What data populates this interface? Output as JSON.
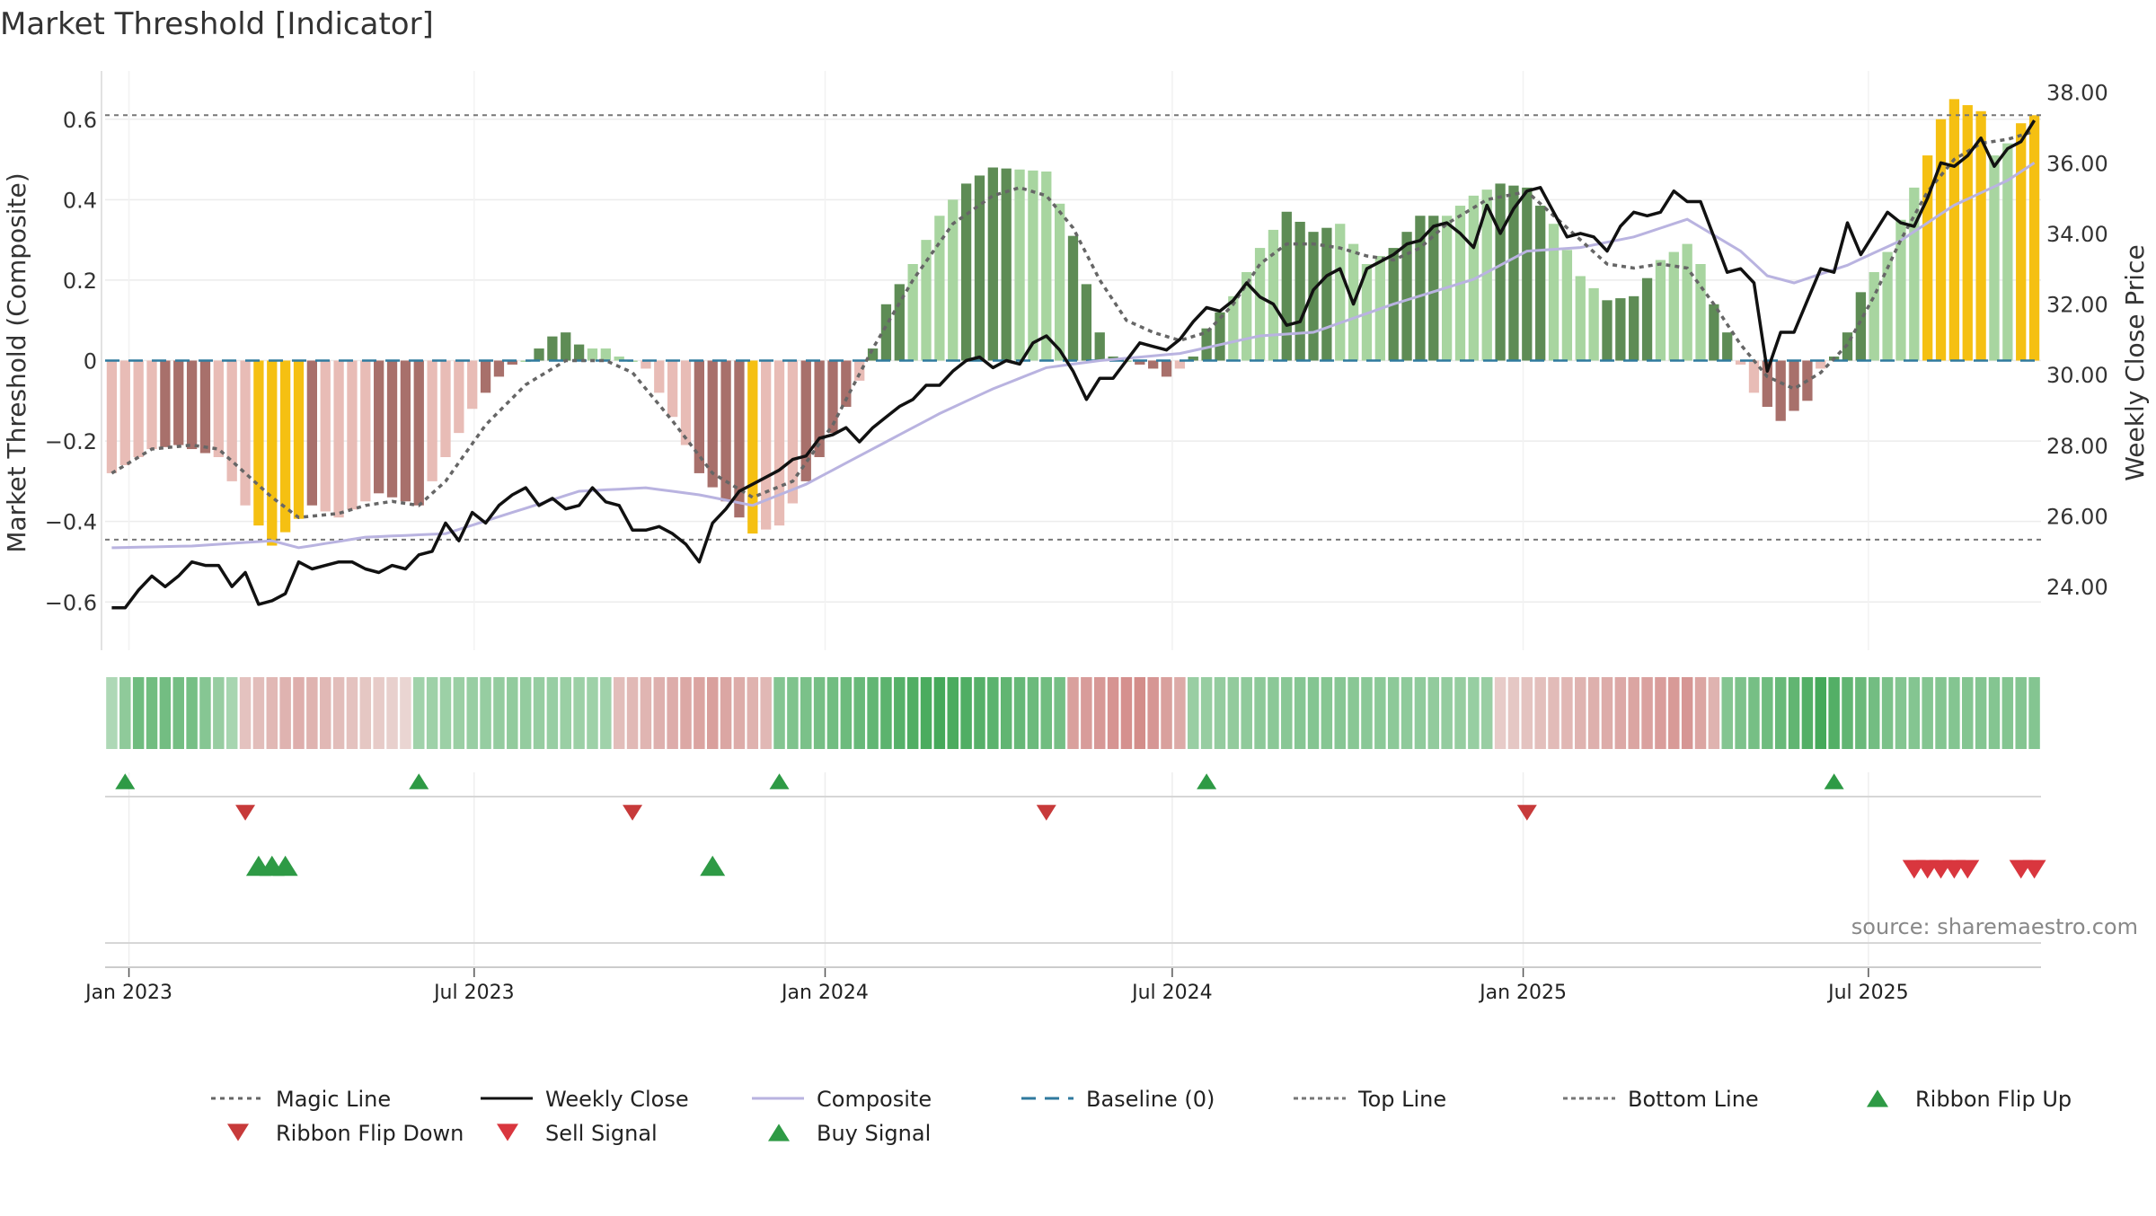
{
  "title": "Market Threshold [Indicator]",
  "source_text": "source: sharemaestro.com",
  "colors": {
    "bar_dark_green": "#5e8c55",
    "bar_light_green": "#a8d5a0",
    "bar_dark_red": "#a8706b",
    "bar_light_red": "#e8bcb6",
    "bar_gold": "#f5c012",
    "weekly_close": "#111111",
    "composite": "#b9b3e0",
    "magic_line": "#666666",
    "baseline": "#2f7a9e",
    "ref_lines": "#777777",
    "buy_green": "#2e9a45",
    "sell_red": "#d9363e",
    "flip_down_red": "#c73a3a"
  },
  "chart_data": {
    "type": "bar",
    "start_date": "2022-12-23",
    "week_count": 145,
    "left_axis": {
      "label": "Market Threshold (Composite)",
      "range": [
        -0.72,
        0.72
      ],
      "ticks": [
        -0.6,
        -0.4,
        -0.2,
        0,
        0.2,
        0.4,
        0.6
      ],
      "tick_labels": [
        "−0.6",
        "−0.4",
        "−0.2",
        "0",
        "0.2",
        "0.4",
        "0.6"
      ]
    },
    "right_axis": {
      "label": "Weekly Close Price",
      "range": [
        22.2,
        38.6
      ],
      "ticks": [
        24,
        26,
        28,
        30,
        32,
        34,
        36,
        38
      ],
      "tick_labels": [
        "24.00",
        "26.00",
        "28.00",
        "30.00",
        "32.00",
        "34.00",
        "36.00",
        "38.00"
      ]
    },
    "x_ticks": [
      {
        "date": "2023-01-01",
        "label": "Jan 2023"
      },
      {
        "date": "2023-07-01",
        "label": "Jul 2023"
      },
      {
        "date": "2024-01-01",
        "label": "Jan 2024"
      },
      {
        "date": "2024-07-01",
        "label": "Jul 2024"
      },
      {
        "date": "2025-01-01",
        "label": "Jan 2025"
      },
      {
        "date": "2025-07-01",
        "label": "Jul 2025"
      }
    ],
    "reference_lines": {
      "top": 0.61,
      "bottom": -0.445,
      "baseline": 0
    },
    "grid": true,
    "composite_bar_anchors": [
      [
        0,
        -0.28
      ],
      [
        3,
        -0.22
      ],
      [
        5,
        -0.21
      ],
      [
        8,
        -0.24
      ],
      [
        10,
        -0.36
      ],
      [
        12,
        -0.46
      ],
      [
        15,
        -0.36
      ],
      [
        17,
        -0.39
      ],
      [
        20,
        -0.33
      ],
      [
        23,
        -0.36
      ],
      [
        25,
        -0.24
      ],
      [
        27,
        -0.12
      ],
      [
        29,
        -0.04
      ],
      [
        30,
        -0.01
      ],
      [
        31,
        0
      ],
      [
        32,
        0.03
      ],
      [
        33,
        0.06
      ],
      [
        34,
        0.07
      ],
      [
        35,
        0.04
      ],
      [
        36,
        0.03
      ],
      [
        37,
        0.03
      ],
      [
        38,
        0.01
      ],
      [
        39,
        0
      ],
      [
        40,
        -0.02
      ],
      [
        42,
        -0.14
      ],
      [
        44,
        -0.28
      ],
      [
        46,
        -0.35
      ],
      [
        48,
        -0.43
      ],
      [
        50,
        -0.41
      ],
      [
        52,
        -0.3
      ],
      [
        54,
        -0.18
      ],
      [
        56,
        -0.05
      ],
      [
        57,
        0.03
      ],
      [
        58,
        0.14
      ],
      [
        60,
        0.24
      ],
      [
        62,
        0.36
      ],
      [
        64,
        0.44
      ],
      [
        66,
        0.48
      ],
      [
        70,
        0.47
      ],
      [
        72,
        0.31
      ],
      [
        74,
        0.07
      ],
      [
        75,
        0.01
      ],
      [
        76,
        0
      ],
      [
        77,
        -0.01
      ],
      [
        78,
        -0.02
      ],
      [
        79,
        -0.04
      ],
      [
        80,
        -0.02
      ],
      [
        81,
        0.01
      ],
      [
        82,
        0.08
      ],
      [
        84,
        0.16
      ],
      [
        86,
        0.28
      ],
      [
        88,
        0.37
      ],
      [
        90,
        0.32
      ],
      [
        92,
        0.34
      ],
      [
        94,
        0.24
      ],
      [
        96,
        0.28
      ],
      [
        98,
        0.36
      ],
      [
        100,
        0.36
      ],
      [
        102,
        0.41
      ],
      [
        104,
        0.44
      ],
      [
        106,
        0.43
      ],
      [
        108,
        0.34
      ],
      [
        110,
        0.21
      ],
      [
        112,
        0.15
      ],
      [
        114,
        0.16
      ],
      [
        116,
        0.25
      ],
      [
        118,
        0.29
      ],
      [
        119,
        0.24
      ],
      [
        120,
        0.14
      ],
      [
        121,
        0.07
      ],
      [
        122,
        -0.01
      ],
      [
        123,
        -0.08
      ],
      [
        125,
        -0.15
      ],
      [
        127,
        -0.1
      ],
      [
        128,
        -0.02
      ],
      [
        129,
        0.01
      ],
      [
        130,
        0.07
      ],
      [
        131,
        0.17
      ],
      [
        133,
        0.27
      ],
      [
        135,
        0.43
      ],
      [
        136,
        0.51
      ],
      [
        137,
        0.6
      ],
      [
        138,
        0.65
      ],
      [
        140,
        0.62
      ],
      [
        141,
        0.51
      ],
      [
        142,
        0.54
      ],
      [
        143,
        0.59
      ],
      [
        144,
        0.61
      ]
    ],
    "bar_color_rule": "gold when |value| >= 0.43 near peaks (weeks 12-14, 48, 136-140, 143-144); otherwise dark/light alternating bands of green (positive) or red (negative)",
    "weekly_close_anchors": [
      [
        0,
        23.4
      ],
      [
        1,
        23.4
      ],
      [
        2,
        23.9
      ],
      [
        3,
        24.3
      ],
      [
        4,
        24.0
      ],
      [
        5,
        24.3
      ],
      [
        6,
        24.7
      ],
      [
        7,
        24.6
      ],
      [
        8,
        24.6
      ],
      [
        9,
        24.0
      ],
      [
        10,
        24.4
      ],
      [
        11,
        23.5
      ],
      [
        12,
        23.6
      ],
      [
        13,
        23.8
      ],
      [
        14,
        24.7
      ],
      [
        15,
        24.5
      ],
      [
        16,
        24.6
      ],
      [
        17,
        24.7
      ],
      [
        18,
        24.7
      ],
      [
        19,
        24.5
      ],
      [
        20,
        24.4
      ],
      [
        21,
        24.6
      ],
      [
        22,
        24.5
      ],
      [
        23,
        24.9
      ],
      [
        24,
        25.0
      ],
      [
        25,
        25.8
      ],
      [
        26,
        25.3
      ],
      [
        27,
        26.1
      ],
      [
        28,
        25.8
      ],
      [
        29,
        26.3
      ],
      [
        30,
        26.6
      ],
      [
        31,
        26.8
      ],
      [
        32,
        26.3
      ],
      [
        33,
        26.5
      ],
      [
        34,
        26.2
      ],
      [
        35,
        26.3
      ],
      [
        36,
        26.8
      ],
      [
        37,
        26.4
      ],
      [
        38,
        26.3
      ],
      [
        39,
        25.6
      ],
      [
        40,
        25.6
      ],
      [
        41,
        25.7
      ],
      [
        42,
        25.5
      ],
      [
        43,
        25.2
      ],
      [
        44,
        24.7
      ],
      [
        45,
        25.8
      ],
      [
        46,
        26.2
      ],
      [
        47,
        26.7
      ],
      [
        48,
        26.9
      ],
      [
        49,
        27.1
      ],
      [
        50,
        27.3
      ],
      [
        51,
        27.6
      ],
      [
        52,
        27.7
      ],
      [
        53,
        28.2
      ],
      [
        54,
        28.3
      ],
      [
        55,
        28.5
      ],
      [
        56,
        28.1
      ],
      [
        57,
        28.5
      ],
      [
        58,
        28.8
      ],
      [
        59,
        29.1
      ],
      [
        60,
        29.3
      ],
      [
        61,
        29.7
      ],
      [
        62,
        29.7
      ],
      [
        63,
        30.1
      ],
      [
        64,
        30.4
      ],
      [
        65,
        30.5
      ],
      [
        66,
        30.2
      ],
      [
        67,
        30.4
      ],
      [
        68,
        30.3
      ],
      [
        69,
        30.9
      ],
      [
        70,
        31.1
      ],
      [
        71,
        30.7
      ],
      [
        72,
        30.1
      ],
      [
        73,
        29.3
      ],
      [
        74,
        29.9
      ],
      [
        75,
        29.9
      ],
      [
        76,
        30.4
      ],
      [
        77,
        30.9
      ],
      [
        78,
        30.8
      ],
      [
        79,
        30.7
      ],
      [
        80,
        31.0
      ],
      [
        81,
        31.5
      ],
      [
        82,
        31.9
      ],
      [
        83,
        31.8
      ],
      [
        84,
        32.1
      ],
      [
        85,
        32.6
      ],
      [
        86,
        32.2
      ],
      [
        87,
        32.0
      ],
      [
        88,
        31.4
      ],
      [
        89,
        31.5
      ],
      [
        90,
        32.4
      ],
      [
        91,
        32.8
      ],
      [
        92,
        33.0
      ],
      [
        93,
        32.0
      ],
      [
        94,
        33.0
      ],
      [
        95,
        33.2
      ],
      [
        96,
        33.4
      ],
      [
        97,
        33.7
      ],
      [
        98,
        33.8
      ],
      [
        99,
        34.2
      ],
      [
        100,
        34.3
      ],
      [
        101,
        34.0
      ],
      [
        102,
        33.6
      ],
      [
        103,
        34.8
      ],
      [
        104,
        34.0
      ],
      [
        105,
        34.7
      ],
      [
        106,
        35.2
      ],
      [
        107,
        35.3
      ],
      [
        108,
        34.6
      ],
      [
        109,
        33.9
      ],
      [
        110,
        34.0
      ],
      [
        111,
        33.9
      ],
      [
        112,
        33.5
      ],
      [
        113,
        34.2
      ],
      [
        114,
        34.6
      ],
      [
        115,
        34.5
      ],
      [
        116,
        34.6
      ],
      [
        117,
        35.2
      ],
      [
        118,
        34.9
      ],
      [
        119,
        34.9
      ],
      [
        120,
        33.9
      ],
      [
        121,
        32.9
      ],
      [
        122,
        33.0
      ],
      [
        123,
        32.6
      ],
      [
        124,
        30.1
      ],
      [
        125,
        31.2
      ],
      [
        126,
        31.2
      ],
      [
        127,
        32.1
      ],
      [
        128,
        33.0
      ],
      [
        129,
        32.9
      ],
      [
        130,
        34.3
      ],
      [
        131,
        33.4
      ],
      [
        132,
        34.0
      ],
      [
        133,
        34.6
      ],
      [
        134,
        34.3
      ],
      [
        135,
        34.2
      ],
      [
        136,
        35.0
      ],
      [
        137,
        36.0
      ],
      [
        138,
        35.9
      ],
      [
        139,
        36.2
      ],
      [
        140,
        36.7
      ],
      [
        141,
        35.9
      ],
      [
        142,
        36.4
      ],
      [
        143,
        36.6
      ],
      [
        144,
        37.2
      ]
    ],
    "composite_anchors": [
      [
        0,
        25.1
      ],
      [
        6,
        25.15
      ],
      [
        12,
        25.3
      ],
      [
        14,
        25.1
      ],
      [
        19,
        25.4
      ],
      [
        25,
        25.5
      ],
      [
        30,
        26.1
      ],
      [
        35,
        26.7
      ],
      [
        40,
        26.8
      ],
      [
        44,
        26.6
      ],
      [
        48,
        26.3
      ],
      [
        52,
        26.9
      ],
      [
        56,
        27.7
      ],
      [
        62,
        28.9
      ],
      [
        66,
        29.6
      ],
      [
        70,
        30.2
      ],
      [
        74,
        30.4
      ],
      [
        80,
        30.6
      ],
      [
        86,
        31.1
      ],
      [
        90,
        31.2
      ],
      [
        96,
        32.0
      ],
      [
        102,
        32.7
      ],
      [
        106,
        33.5
      ],
      [
        110,
        33.6
      ],
      [
        114,
        33.9
      ],
      [
        118,
        34.4
      ],
      [
        122,
        33.5
      ],
      [
        124,
        32.8
      ],
      [
        126,
        32.6
      ],
      [
        130,
        33.1
      ],
      [
        134,
        33.8
      ],
      [
        138,
        34.8
      ],
      [
        142,
        35.5
      ],
      [
        144,
        36.0
      ]
    ],
    "magic_line_anchors": [
      [
        0,
        -0.28
      ],
      [
        3,
        -0.22
      ],
      [
        6,
        -0.21
      ],
      [
        8,
        -0.22
      ],
      [
        10,
        -0.28
      ],
      [
        12,
        -0.34
      ],
      [
        14,
        -0.39
      ],
      [
        17,
        -0.38
      ],
      [
        19,
        -0.36
      ],
      [
        21,
        -0.35
      ],
      [
        23,
        -0.36
      ],
      [
        25,
        -0.3
      ],
      [
        28,
        -0.16
      ],
      [
        31,
        -0.06
      ],
      [
        34,
        0
      ],
      [
        37,
        0
      ],
      [
        39,
        -0.03
      ],
      [
        42,
        -0.15
      ],
      [
        45,
        -0.28
      ],
      [
        48,
        -0.34
      ],
      [
        51,
        -0.3
      ],
      [
        54,
        -0.16
      ],
      [
        57,
        0.03
      ],
      [
        60,
        0.2
      ],
      [
        63,
        0.34
      ],
      [
        66,
        0.41
      ],
      [
        68,
        0.43
      ],
      [
        70,
        0.41
      ],
      [
        72,
        0.33
      ],
      [
        74,
        0.2
      ],
      [
        76,
        0.1
      ],
      [
        78,
        0.07
      ],
      [
        80,
        0.05
      ],
      [
        82,
        0.07
      ],
      [
        84,
        0.14
      ],
      [
        86,
        0.24
      ],
      [
        88,
        0.29
      ],
      [
        90,
        0.29
      ],
      [
        92,
        0.28
      ],
      [
        94,
        0.26
      ],
      [
        96,
        0.25
      ],
      [
        98,
        0.28
      ],
      [
        100,
        0.34
      ],
      [
        103,
        0.4
      ],
      [
        106,
        0.42
      ],
      [
        108,
        0.36
      ],
      [
        110,
        0.3
      ],
      [
        112,
        0.24
      ],
      [
        114,
        0.23
      ],
      [
        116,
        0.24
      ],
      [
        118,
        0.23
      ],
      [
        120,
        0.14
      ],
      [
        122,
        0.04
      ],
      [
        124,
        -0.04
      ],
      [
        126,
        -0.07
      ],
      [
        128,
        -0.03
      ],
      [
        130,
        0.04
      ],
      [
        132,
        0.16
      ],
      [
        134,
        0.3
      ],
      [
        136,
        0.42
      ],
      [
        138,
        0.5
      ],
      [
        140,
        0.54
      ],
      [
        142,
        0.55
      ],
      [
        144,
        0.57
      ]
    ],
    "ribbon_anchors": [
      [
        0,
        0.25
      ],
      [
        2,
        0.7
      ],
      [
        6,
        0.65
      ],
      [
        9,
        0.3
      ],
      [
        10,
        -0.3
      ],
      [
        14,
        -0.5
      ],
      [
        19,
        -0.25
      ],
      [
        22,
        -0.1
      ],
      [
        23,
        0.35
      ],
      [
        30,
        0.45
      ],
      [
        37,
        0.35
      ],
      [
        38,
        -0.35
      ],
      [
        45,
        -0.65
      ],
      [
        49,
        -0.4
      ],
      [
        50,
        0.55
      ],
      [
        56,
        0.75
      ],
      [
        62,
        1.0
      ],
      [
        67,
        0.8
      ],
      [
        71,
        0.65
      ],
      [
        72,
        -0.65
      ],
      [
        77,
        -0.85
      ],
      [
        80,
        -0.55
      ],
      [
        81,
        0.4
      ],
      [
        90,
        0.55
      ],
      [
        99,
        0.45
      ],
      [
        103,
        0.4
      ],
      [
        104,
        -0.2
      ],
      [
        110,
        -0.45
      ],
      [
        114,
        -0.6
      ],
      [
        118,
        -0.75
      ],
      [
        120,
        -0.45
      ],
      [
        121,
        0.55
      ],
      [
        126,
        0.8
      ],
      [
        128,
        1.0
      ],
      [
        130,
        0.8
      ],
      [
        134,
        0.55
      ]
    ],
    "ribbon_flip_up_weeks": [
      1,
      23,
      50,
      82,
      129
    ],
    "ribbon_flip_down_weeks": [
      10,
      39,
      70,
      106
    ],
    "buy_signal_weeks": [
      11,
      12,
      13,
      45
    ],
    "sell_signal_weeks": [
      135,
      136,
      137,
      138,
      139,
      143,
      144
    ],
    "legend": [
      {
        "name": "Magic Line",
        "kind": "dotted",
        "color": "#666666"
      },
      {
        "name": "Weekly Close",
        "kind": "solid",
        "color": "#111111"
      },
      {
        "name": "Composite",
        "kind": "solid",
        "color": "#b9b3e0"
      },
      {
        "name": "Baseline (0)",
        "kind": "dashed",
        "color": "#2f7a9e"
      },
      {
        "name": "Top Line",
        "kind": "dashed-fine",
        "color": "#777777"
      },
      {
        "name": "Bottom Line",
        "kind": "dashed-fine",
        "color": "#777777"
      },
      {
        "name": "Ribbon Flip Up",
        "kind": "tri-up",
        "color": "#2e9a45"
      },
      {
        "name": "Ribbon Flip Down",
        "kind": "tri-down",
        "color": "#c73a3a"
      },
      {
        "name": "Sell Signal",
        "kind": "tri-down",
        "color": "#d9363e"
      },
      {
        "name": "Buy Signal",
        "kind": "tri-up",
        "color": "#2e9a45"
      }
    ]
  }
}
